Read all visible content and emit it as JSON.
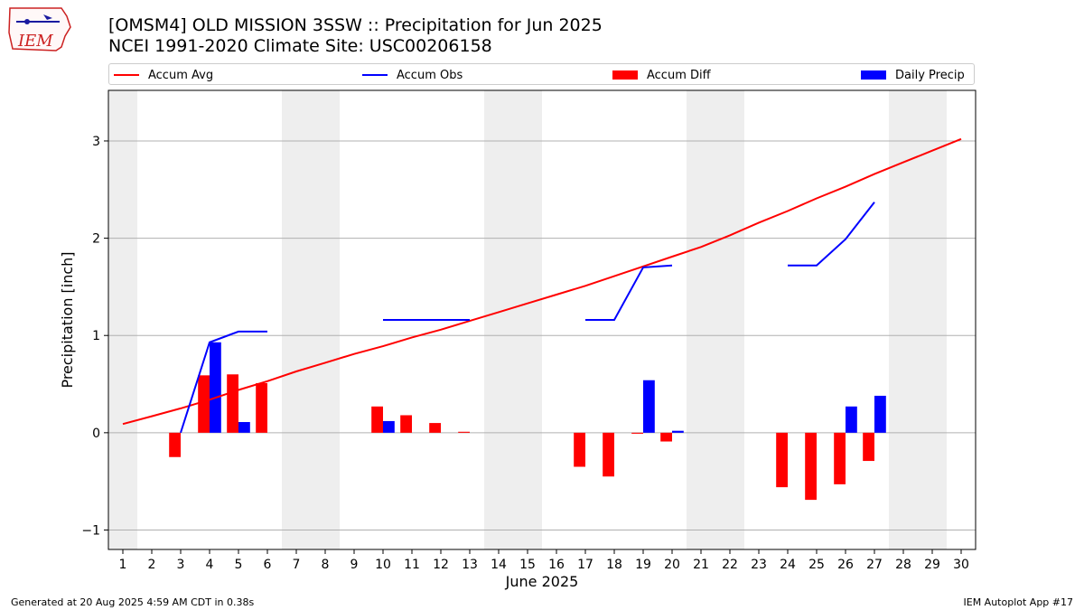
{
  "header": {
    "title_line1": "[OMSM4] OLD MISSION 3SSW :: Precipitation for Jun 2025",
    "title_line2": "NCEI 1991-2020 Climate Site: USC00206158",
    "logo_text": "IEM"
  },
  "footer": {
    "generated": "Generated at 20 Aug 2025 4:59 AM CDT in 0.38s",
    "app": "IEM Autoplot App #17"
  },
  "legend": [
    {
      "label": "Accum Avg",
      "kind": "line",
      "color": "#ff0000"
    },
    {
      "label": "Accum Obs",
      "kind": "line",
      "color": "#0000ff"
    },
    {
      "label": "Accum Diff",
      "kind": "bar",
      "color": "#ff0000"
    },
    {
      "label": "Daily Precip",
      "kind": "bar",
      "color": "#0000ff"
    }
  ],
  "chart_data": {
    "type": "bar",
    "xlabel": "June 2025",
    "ylabel": "Precipitation [inch]",
    "xlim": [
      0.5,
      30.5
    ],
    "ylim": [
      -1.2,
      3.52
    ],
    "yticks": [
      -1,
      0,
      1,
      2,
      3
    ],
    "grid": "horizontal",
    "legend_placement": "top",
    "weekend_shading": [
      1,
      7,
      8,
      14,
      15,
      21,
      22,
      28,
      29
    ],
    "x": [
      1,
      2,
      3,
      4,
      5,
      6,
      7,
      8,
      9,
      10,
      11,
      12,
      13,
      14,
      15,
      16,
      17,
      18,
      19,
      20,
      21,
      22,
      23,
      24,
      25,
      26,
      27,
      28,
      29,
      30
    ],
    "series": [
      {
        "name": "Accum Avg",
        "type": "line",
        "color": "#ff0000",
        "values": [
          0.09,
          0.17,
          0.25,
          0.34,
          0.44,
          0.53,
          0.63,
          0.72,
          0.81,
          0.89,
          0.98,
          1.06,
          1.15,
          1.24,
          1.33,
          1.42,
          1.51,
          1.61,
          1.71,
          1.81,
          1.91,
          2.03,
          2.16,
          2.28,
          2.41,
          2.53,
          2.66,
          2.78,
          2.9,
          3.02
        ]
      },
      {
        "name": "Accum Obs",
        "type": "line",
        "color": "#0000ff",
        "values": [
          null,
          null,
          0.0,
          0.93,
          1.04,
          1.04,
          null,
          null,
          null,
          1.16,
          1.16,
          1.16,
          1.16,
          null,
          null,
          null,
          1.16,
          1.16,
          1.7,
          1.72,
          null,
          null,
          null,
          1.72,
          1.72,
          1.99,
          2.37,
          null,
          null,
          null
        ]
      },
      {
        "name": "Accum Diff",
        "type": "bar",
        "color": "#ff0000",
        "values": [
          null,
          null,
          -0.25,
          0.59,
          0.6,
          0.51,
          null,
          null,
          null,
          0.27,
          0.18,
          0.1,
          0.01,
          null,
          null,
          null,
          -0.35,
          -0.45,
          -0.01,
          -0.09,
          null,
          null,
          null,
          -0.56,
          -0.69,
          -0.53,
          -0.29,
          null,
          null,
          null
        ]
      },
      {
        "name": "Daily Precip",
        "type": "bar",
        "color": "#0000ff",
        "values": [
          null,
          null,
          0.0,
          0.93,
          0.11,
          0.0,
          null,
          null,
          null,
          0.12,
          0.0,
          0.0,
          0.0,
          null,
          null,
          null,
          0.0,
          0.0,
          0.54,
          0.02,
          null,
          null,
          null,
          0.0,
          0.0,
          0.27,
          0.38,
          null,
          null,
          null
        ]
      }
    ]
  }
}
